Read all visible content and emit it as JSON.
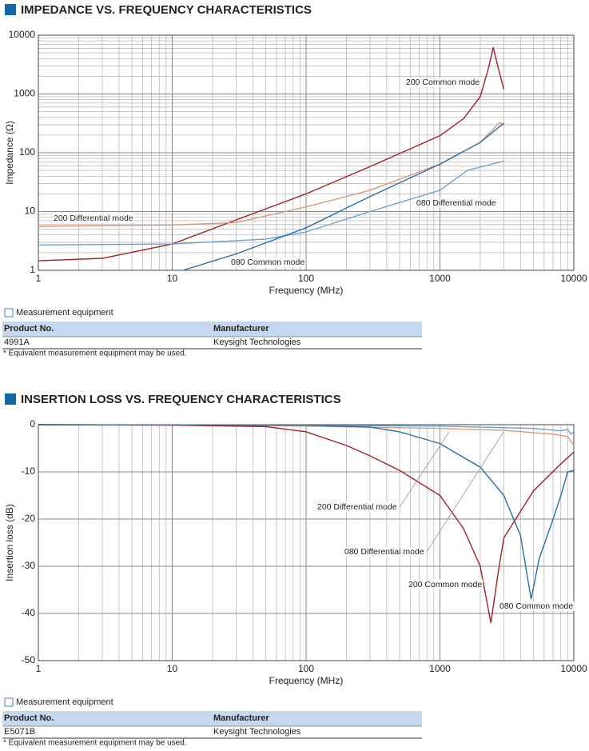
{
  "chart_data": [
    {
      "type": "line",
      "title": "IMPEDANCE VS. FREQUENCY CHARACTERISTICS",
      "xlabel": "Frequency (MHz)",
      "ylabel": "Impedance (Ω)",
      "log_x": true,
      "log_y": true,
      "grid": true,
      "xlim": [
        1,
        10000
      ],
      "xticks": [
        1,
        10,
        100,
        1000,
        10000
      ],
      "ylim": [
        1,
        10000
      ],
      "yticks": [
        1,
        10,
        100,
        1000,
        10000
      ],
      "series": [
        {
          "name": "200 Common mode",
          "color": "#a31f24",
          "x": [
            1,
            3,
            10,
            30,
            100,
            300,
            1000,
            1500,
            2000,
            2300,
            2500,
            2700,
            3000
          ],
          "values": [
            1.45,
            1.6,
            2.8,
            7.2,
            20,
            58,
            195,
            380,
            900,
            2700,
            6200,
            3000,
            1200
          ]
        },
        {
          "name": "200 Differential mode",
          "color": "#d49a7d",
          "x": [
            1,
            10,
            30,
            100,
            300,
            1000,
            2000,
            2800,
            3000
          ],
          "values": [
            5.6,
            5.9,
            6.5,
            12,
            23,
            64,
            150,
            330,
            290
          ]
        },
        {
          "name": "080 Differential mode",
          "color": "#6aa0cc",
          "x": [
            1,
            10,
            50,
            100,
            300,
            1000,
            1600,
            3000
          ],
          "values": [
            2.7,
            2.8,
            3.4,
            4.5,
            10,
            23,
            50,
            72
          ]
        },
        {
          "name": "080 Common mode",
          "color": "#2a6fa8",
          "x": [
            12,
            30,
            100,
            300,
            1000,
            2000,
            3000
          ],
          "values": [
            1,
            1.9,
            5.3,
            18,
            64,
            150,
            320
          ]
        }
      ]
    },
    {
      "type": "line",
      "title": "INSERTION LOSS VS. FREQUENCY CHARACTERISTICS",
      "xlabel": "Frequency (MHz)",
      "ylabel": "Insertion loss (dB)",
      "log_x": true,
      "log_y": false,
      "grid": true,
      "xlim": [
        1,
        10000
      ],
      "xticks": [
        1,
        10,
        100,
        1000,
        10000
      ],
      "ylim": [
        -50,
        0
      ],
      "yticks": [
        0,
        -10,
        -20,
        -30,
        -40,
        -50
      ],
      "series": [
        {
          "name": "200 Differential mode",
          "color": "#d49a7d",
          "x": [
            1,
            30,
            100,
            1000,
            3000,
            7000,
            9000,
            10000
          ],
          "values": [
            0,
            -0.1,
            -0.3,
            -0.8,
            -1.2,
            -2,
            -2.5,
            -4.5
          ]
        },
        {
          "name": "080 Differential mode",
          "color": "#6aa0cc",
          "x": [
            1,
            100,
            1000,
            5000,
            8000,
            9000,
            9500,
            10000
          ],
          "values": [
            0,
            -0.1,
            -0.3,
            -0.8,
            -1.3,
            -1,
            -2,
            -1.5
          ]
        },
        {
          "name": "200 Common mode",
          "color": "#a31f24",
          "x": [
            1,
            10,
            50,
            100,
            200,
            300,
            500,
            1000,
            1500,
            2000,
            2400,
            2700,
            3000,
            5000,
            8000,
            10000
          ],
          "values": [
            0,
            -0.1,
            -0.4,
            -1.5,
            -4.4,
            -6.6,
            -9.7,
            -15,
            -22,
            -30,
            -42,
            -32,
            -24,
            -14,
            -8.3,
            -5.8
          ]
        },
        {
          "name": "080 Common mode",
          "color": "#2a6fa8",
          "x": [
            1,
            100,
            300,
            500,
            1000,
            2000,
            3000,
            4000,
            4800,
            5500,
            7000,
            8000,
            9000,
            10000
          ],
          "values": [
            0,
            -0.1,
            -0.5,
            -1.5,
            -4,
            -9,
            -15,
            -23.5,
            -37,
            -28.5,
            -20,
            -15,
            -10,
            -9.7
          ]
        }
      ]
    }
  ],
  "sections": [
    {
      "equipment_label": "Measurement equipment",
      "table": {
        "header": [
          "Product No.",
          "Manufacturer"
        ],
        "rows": [
          [
            "4991A",
            "Keysight Technologies"
          ]
        ]
      },
      "note": "* Equivalent measurement equipment may be used."
    },
    {
      "equipment_label": "Measurement equipment",
      "table": {
        "header": [
          "Product No.",
          "Manufacturer"
        ],
        "rows": [
          [
            "E5071B",
            "Keysight Technologies"
          ]
        ]
      },
      "note": "* Equivalent measurement equipment may be used."
    }
  ]
}
